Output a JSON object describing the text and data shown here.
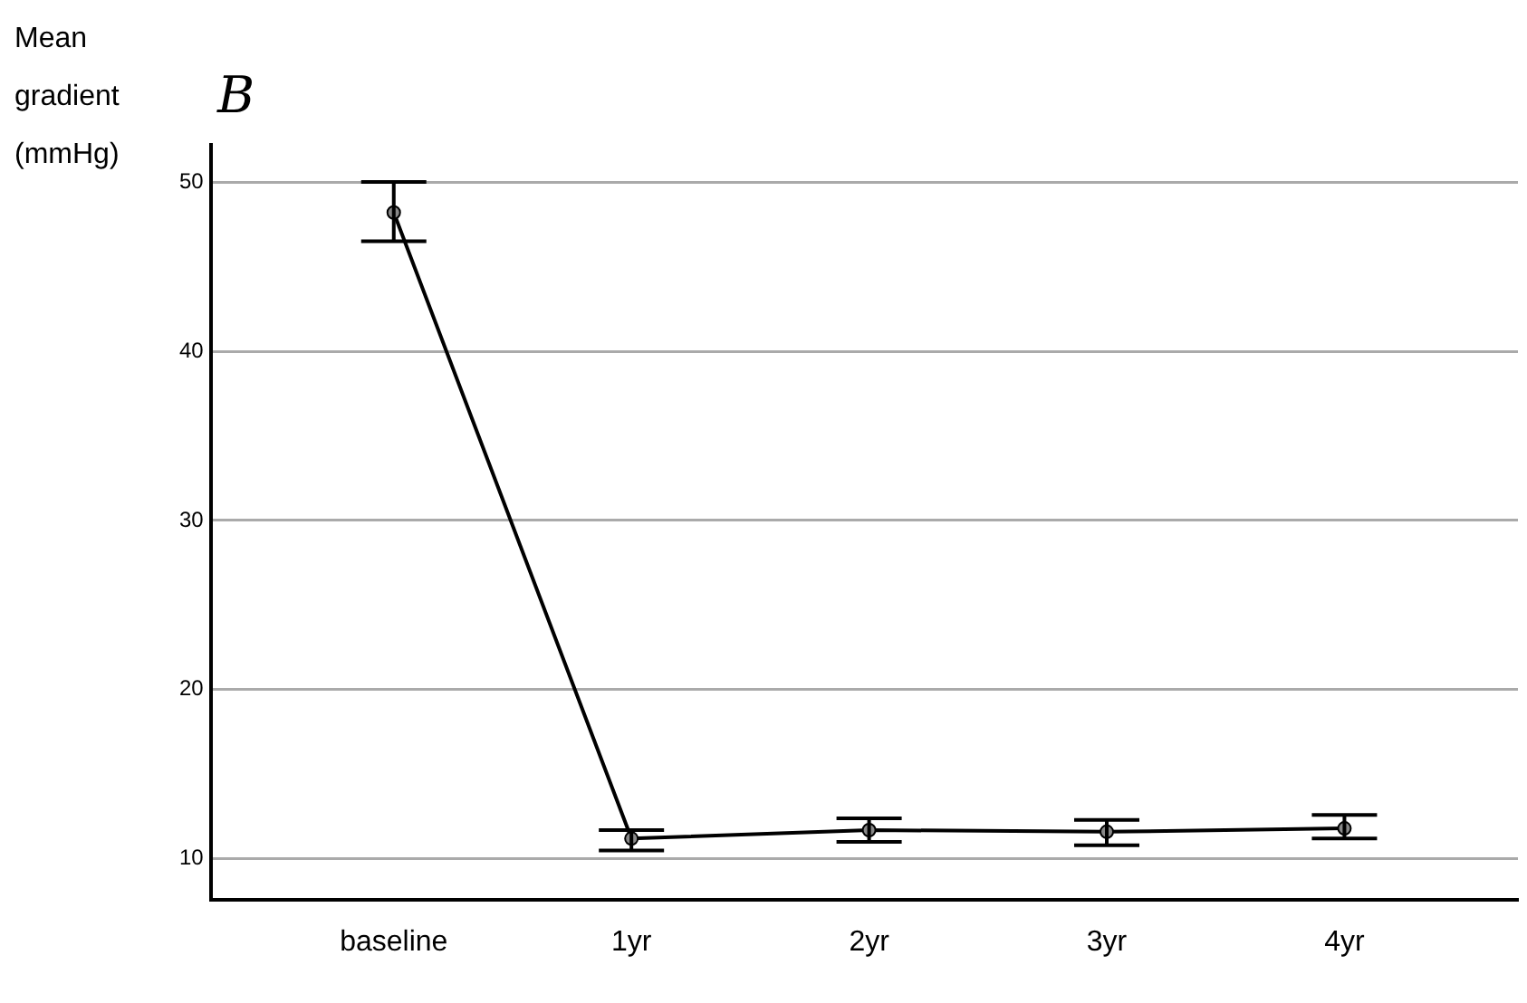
{
  "chart_data": {
    "type": "line",
    "title": "B",
    "ylabel": "Mean gradient (mmHg)",
    "categories": [
      "baseline",
      "1yr",
      "2yr",
      "3yr",
      "4yr"
    ],
    "series": [
      {
        "color": "#000000",
        "values": [
          48.2,
          11.2,
          11.7,
          11.6,
          11.8
        ],
        "errors": [
          [
            46.5,
            50.0
          ],
          [
            10.5,
            11.7
          ],
          [
            11.0,
            12.4
          ],
          [
            10.8,
            12.3
          ],
          [
            11.2,
            12.6
          ]
        ]
      }
    ],
    "ylim": [
      7.6,
      52.2
    ],
    "yticks": [
      10,
      20,
      30,
      40,
      50
    ],
    "grid": "y",
    "legend": false,
    "marker": "circle",
    "line_style": "solid"
  }
}
